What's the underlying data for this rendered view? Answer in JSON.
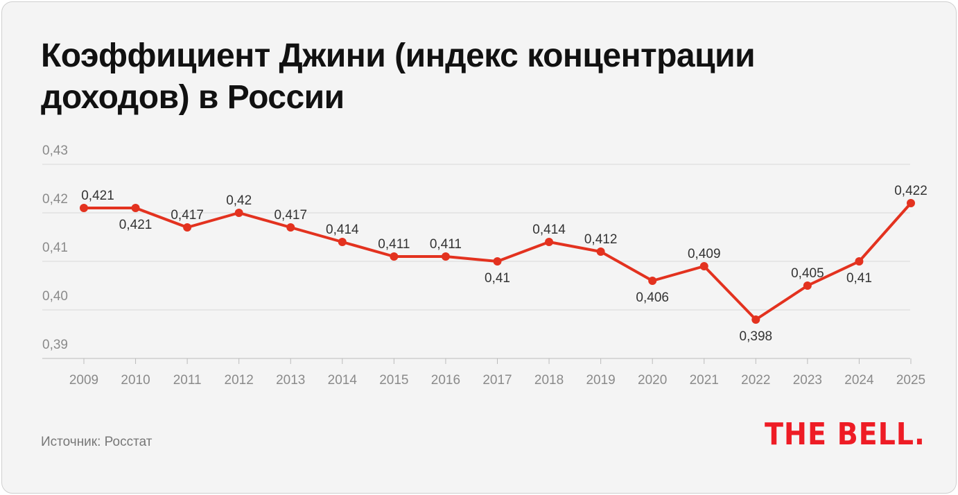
{
  "chart_data": {
    "type": "line",
    "title": "Коэффициент Джини (индекс концентрации доходов) в России",
    "categories": [
      "2009",
      "2010",
      "2011",
      "2012",
      "2013",
      "2014",
      "2015",
      "2016",
      "2017",
      "2018",
      "2019",
      "2020",
      "2021",
      "2022",
      "2023",
      "2024",
      "2025"
    ],
    "series": [
      {
        "name": "Коэффициент Джини",
        "color": "#e3321f",
        "values": [
          0.421,
          0.421,
          0.417,
          0.42,
          0.417,
          0.414,
          0.411,
          0.411,
          0.41,
          0.414,
          0.412,
          0.406,
          0.409,
          0.398,
          0.405,
          0.41,
          0.422
        ],
        "value_labels": [
          "0,421",
          "0,421",
          "0,417",
          "0,42",
          "0,417",
          "0,414",
          "0,411",
          "0,411",
          "0,41",
          "0,414",
          "0,412",
          "0,406",
          "0,409",
          "0,398",
          "0,405",
          "0,41",
          "0,422"
        ]
      }
    ],
    "ylim": [
      0.39,
      0.43
    ],
    "yticks": [
      {
        "value": 0.39,
        "label": "0,39"
      },
      {
        "value": 0.4,
        "label": "0,40"
      },
      {
        "value": 0.41,
        "label": "0,41"
      },
      {
        "value": 0.42,
        "label": "0,42"
      },
      {
        "value": 0.43,
        "label": "0,43"
      }
    ],
    "grid": true,
    "source": "Источник: Росстат",
    "logo": "THE BELL."
  }
}
